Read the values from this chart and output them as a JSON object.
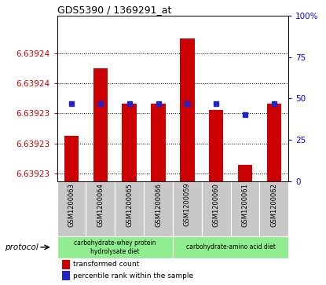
{
  "title": "GDS5390 / 1369291_at",
  "samples": [
    "GSM1200063",
    "GSM1200064",
    "GSM1200065",
    "GSM1200066",
    "GSM1200059",
    "GSM1200060",
    "GSM1200061",
    "GSM1200062"
  ],
  "red_values": [
    6.639228,
    6.639237,
    6.6392323,
    6.6392323,
    6.639241,
    6.6392315,
    6.6392242,
    6.6392323
  ],
  "blue_values": [
    47,
    47,
    47,
    47,
    47,
    47,
    40,
    47
  ],
  "ymin": 6.639222,
  "ymax": 6.639244,
  "ytick_vals": [
    6.639223,
    6.639227,
    6.639231,
    6.639235,
    6.639239
  ],
  "ytick_labels": [
    "6.63923",
    "6.63923",
    "6.63923",
    "6.63924",
    "6.63924"
  ],
  "protocol_label1": "carbohydrate-whey protein\nhydrolysate diet",
  "protocol_label2": "carbohydrate-amino acid diet",
  "legend_red": "transformed count",
  "legend_blue": "percentile rank within the sample",
  "bar_color": "#cc0000",
  "blue_color": "#2222cc",
  "sample_bg_color": "#c8c8c8",
  "group1_color": "#90ee90",
  "group2_color": "#90ee90",
  "protocol_text": "protocol",
  "right_yticks": [
    0,
    25,
    50,
    75,
    100
  ],
  "right_yticklabels": [
    "0",
    "25",
    "50",
    "75",
    "100%"
  ]
}
